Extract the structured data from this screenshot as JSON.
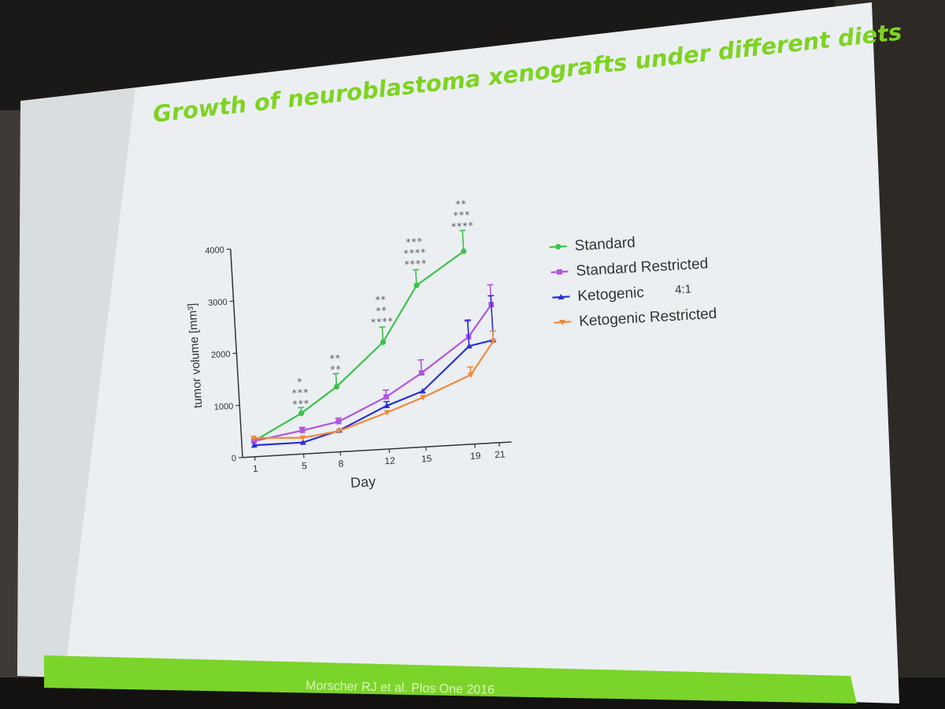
{
  "slide": {
    "title": "Growth of neuroblastoma xenografts under different diets",
    "citation": "Morscher RJ et al.  Plos One 2016"
  },
  "chart_data": {
    "type": "line",
    "title": "Growth of neuroblastoma xenografts under different diets",
    "xlabel": "Day",
    "ylabel": "tumor volume [mm³]",
    "x_ticks": [
      1,
      5,
      8,
      12,
      15,
      19,
      21
    ],
    "y_ticks": [
      0,
      1000,
      2000,
      3000,
      4000
    ],
    "xlim": [
      0,
      22
    ],
    "ylim": [
      0,
      4000
    ],
    "legend_position": "right",
    "legend_note": "4:1",
    "series": [
      {
        "name": "Standard",
        "color": "#3cc24a",
        "marker": "circle",
        "x": [
          1,
          5,
          8,
          12,
          15,
          19
        ],
        "y": [
          300,
          780,
          1250,
          2050,
          3100,
          3700
        ],
        "error": [
          null,
          110,
          250,
          290,
          300,
          400
        ]
      },
      {
        "name": "Standard Restricted",
        "color": "#b055e0",
        "marker": "square",
        "x": [
          1,
          5,
          8,
          12,
          15,
          19,
          21
        ],
        "y": [
          300,
          450,
          580,
          1000,
          1420,
          2060,
          2650
        ],
        "error": [
          null,
          60,
          70,
          130,
          250,
          300,
          380
        ]
      },
      {
        "name": "Ketogenic",
        "color": "#2a2fd8",
        "marker": "triangle",
        "x": [
          1,
          5,
          8,
          12,
          15,
          19,
          21
        ],
        "y": [
          220,
          220,
          410,
          830,
          1070,
          1880,
          1970
        ],
        "error": [
          null,
          null,
          null,
          80,
          null,
          500,
          850
        ]
      },
      {
        "name": "Ketogenic Restricted",
        "color": "#f08a3c",
        "marker": "triangle-down",
        "x": [
          1,
          5,
          8,
          12,
          15,
          19,
          21
        ],
        "y": [
          360,
          310,
          400,
          700,
          950,
          1330,
          1950
        ],
        "error": [
          null,
          null,
          null,
          null,
          null,
          150,
          190
        ]
      }
    ],
    "significance": [
      {
        "x": 5,
        "y": 900,
        "marks": [
          "*",
          "***",
          "***"
        ]
      },
      {
        "x": 8,
        "y": 1520,
        "marks": [
          "**",
          "**"
        ]
      },
      {
        "x": 12,
        "y": 2380,
        "marks": [
          "**",
          "**",
          "****"
        ]
      },
      {
        "x": 15,
        "y": 3450,
        "marks": [
          "***",
          "****",
          "****"
        ]
      },
      {
        "x": 19,
        "y": 4120,
        "marks": [
          "**",
          "***",
          "****"
        ]
      }
    ]
  }
}
